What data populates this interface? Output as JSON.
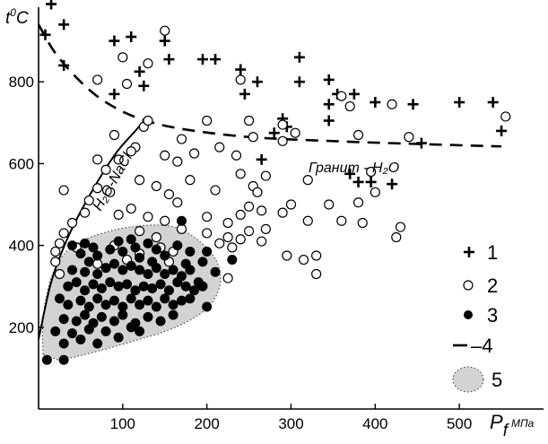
{
  "chart_data": {
    "type": "scatter",
    "ylabel": {
      "main": "t",
      "sup": "0",
      "unit": "C"
    },
    "xlabel": {
      "main": "P",
      "sub": "f",
      "unit": "МПа"
    },
    "xlim": [
      0,
      600
    ],
    "ylim": [
      0,
      1000
    ],
    "xticks": [
      "100",
      "200",
      "300",
      "400",
      "500"
    ],
    "xtick_values": [
      100,
      200,
      300,
      400,
      500
    ],
    "yticks": [
      "200",
      "400",
      "600",
      "800"
    ],
    "ytick_values": [
      200,
      400,
      600,
      800
    ],
    "grid": false,
    "legend_position": "right",
    "series": [
      {
        "label": "1",
        "marker": "plus",
        "points": [
          [
            10,
            1020
          ],
          [
            15,
            990
          ],
          [
            8,
            915
          ],
          [
            30,
            940
          ],
          [
            30,
            840
          ],
          [
            90,
            900
          ],
          [
            110,
            910
          ],
          [
            90,
            770
          ],
          [
            120,
            825
          ],
          [
            125,
            790
          ],
          [
            150,
            900
          ],
          [
            155,
            855
          ],
          [
            195,
            855
          ],
          [
            210,
            855
          ],
          [
            240,
            830
          ],
          [
            245,
            770
          ],
          [
            260,
            800
          ],
          [
            280,
            675
          ],
          [
            265,
            610
          ],
          [
            290,
            710
          ],
          [
            295,
            690
          ],
          [
            310,
            860
          ],
          [
            310,
            800
          ],
          [
            345,
            805
          ],
          [
            355,
            770
          ],
          [
            345,
            745
          ],
          [
            345,
            705
          ],
          [
            375,
            770
          ],
          [
            400,
            750
          ],
          [
            370,
            575
          ],
          [
            380,
            555
          ],
          [
            395,
            555
          ],
          [
            420,
            550
          ],
          [
            445,
            745
          ],
          [
            455,
            650
          ],
          [
            500,
            750
          ],
          [
            540,
            750
          ],
          [
            550,
            680
          ]
        ]
      },
      {
        "label": "2",
        "marker": "open-circle",
        "points": [
          [
            150,
            925
          ],
          [
            100,
            860
          ],
          [
            130,
            845
          ],
          [
            70,
            805
          ],
          [
            105,
            795
          ],
          [
            90,
            670
          ],
          [
            125,
            690
          ],
          [
            130,
            705
          ],
          [
            115,
            640
          ],
          [
            170,
            660
          ],
          [
            200,
            705
          ],
          [
            240,
            805
          ],
          [
            250,
            705
          ],
          [
            255,
            665
          ],
          [
            290,
            695
          ],
          [
            305,
            675
          ],
          [
            290,
            655
          ],
          [
            360,
            765
          ],
          [
            370,
            740
          ],
          [
            380,
            670
          ],
          [
            420,
            745
          ],
          [
            440,
            665
          ],
          [
            555,
            715
          ],
          [
            70,
            610
          ],
          [
            80,
            585
          ],
          [
            95,
            610
          ],
          [
            110,
            630
          ],
          [
            150,
            620
          ],
          [
            165,
            605
          ],
          [
            185,
            625
          ],
          [
            215,
            640
          ],
          [
            235,
            620
          ],
          [
            70,
            540
          ],
          [
            85,
            530
          ],
          [
            60,
            510
          ],
          [
            30,
            535
          ],
          [
            120,
            560
          ],
          [
            140,
            545
          ],
          [
            155,
            525
          ],
          [
            165,
            505
          ],
          [
            180,
            560
          ],
          [
            210,
            535
          ],
          [
            240,
            575
          ],
          [
            255,
            545
          ],
          [
            260,
            530
          ],
          [
            270,
            570
          ],
          [
            250,
            495
          ],
          [
            265,
            485
          ],
          [
            290,
            480
          ],
          [
            300,
            500
          ],
          [
            320,
            560
          ],
          [
            345,
            500
          ],
          [
            360,
            460
          ],
          [
            380,
            505
          ],
          [
            385,
            455
          ],
          [
            395,
            580
          ],
          [
            400,
            530
          ],
          [
            425,
            420
          ],
          [
            430,
            445
          ],
          [
            320,
            460
          ],
          [
            240,
            475
          ],
          [
            225,
            455
          ],
          [
            250,
            435
          ],
          [
            265,
            410
          ],
          [
            270,
            440
          ],
          [
            240,
            415
          ],
          [
            295,
            375
          ],
          [
            315,
            365
          ],
          [
            330,
            375
          ],
          [
            330,
            330
          ],
          [
            55,
            480
          ],
          [
            95,
            475
          ],
          [
            110,
            490
          ],
          [
            130,
            470
          ],
          [
            150,
            460
          ],
          [
            120,
            435
          ],
          [
            140,
            420
          ],
          [
            170,
            440
          ],
          [
            200,
            470
          ],
          [
            200,
            430
          ],
          [
            215,
            405
          ],
          [
            225,
            420
          ],
          [
            230,
            395
          ],
          [
            120,
            380
          ],
          [
            145,
            395
          ],
          [
            160,
            385
          ],
          [
            155,
            360
          ],
          [
            105,
            365
          ],
          [
            90,
            400
          ],
          [
            70,
            355
          ],
          [
            45,
            395
          ],
          [
            20,
            385
          ],
          [
            25,
            405
          ],
          [
            20,
            360
          ],
          [
            25,
            330
          ],
          [
            30,
            430
          ],
          [
            40,
            455
          ],
          [
            225,
            320
          ]
        ]
      },
      {
        "label": "3",
        "marker": "filled-circle",
        "points": [
          [
            40,
            400
          ],
          [
            55,
            405
          ],
          [
            65,
            395
          ],
          [
            50,
            380
          ],
          [
            70,
            375
          ],
          [
            60,
            360
          ],
          [
            85,
            390
          ],
          [
            95,
            410
          ],
          [
            100,
            385
          ],
          [
            110,
            415
          ],
          [
            115,
            395
          ],
          [
            120,
            370
          ],
          [
            130,
            405
          ],
          [
            140,
            390
          ],
          [
            135,
            360
          ],
          [
            150,
            375
          ],
          [
            165,
            400
          ],
          [
            170,
            460
          ],
          [
            180,
            385
          ],
          [
            175,
            355
          ],
          [
            200,
            385
          ],
          [
            195,
            360
          ],
          [
            210,
            335
          ],
          [
            40,
            340
          ],
          [
            55,
            335
          ],
          [
            70,
            330
          ],
          [
            80,
            345
          ],
          [
            90,
            355
          ],
          [
            100,
            340
          ],
          [
            110,
            350
          ],
          [
            120,
            340
          ],
          [
            130,
            330
          ],
          [
            140,
            345
          ],
          [
            150,
            330
          ],
          [
            160,
            340
          ],
          [
            170,
            325
          ],
          [
            180,
            340
          ],
          [
            190,
            310
          ],
          [
            35,
            300
          ],
          [
            45,
            310
          ],
          [
            55,
            290
          ],
          [
            65,
            305
          ],
          [
            75,
            295
          ],
          [
            85,
            310
          ],
          [
            95,
            300
          ],
          [
            105,
            305
          ],
          [
            115,
            290
          ],
          [
            125,
            300
          ],
          [
            135,
            295
          ],
          [
            145,
            305
          ],
          [
            155,
            290
          ],
          [
            165,
            310
          ],
          [
            175,
            300
          ],
          [
            185,
            290
          ],
          [
            195,
            300
          ],
          [
            25,
            270
          ],
          [
            35,
            255
          ],
          [
            50,
            265
          ],
          [
            60,
            250
          ],
          [
            70,
            270
          ],
          [
            80,
            255
          ],
          [
            90,
            265
          ],
          [
            100,
            250
          ],
          [
            110,
            270
          ],
          [
            120,
            255
          ],
          [
            130,
            265
          ],
          [
            140,
            250
          ],
          [
            150,
            270
          ],
          [
            160,
            255
          ],
          [
            170,
            265
          ],
          [
            180,
            270
          ],
          [
            30,
            220
          ],
          [
            45,
            215
          ],
          [
            55,
            230
          ],
          [
            65,
            210
          ],
          [
            75,
            225
          ],
          [
            90,
            215
          ],
          [
            100,
            230
          ],
          [
            115,
            210
          ],
          [
            130,
            225
          ],
          [
            145,
            215
          ],
          [
            160,
            230
          ],
          [
            20,
            190
          ],
          [
            40,
            185
          ],
          [
            60,
            195
          ],
          [
            80,
            190
          ],
          [
            30,
            160
          ],
          [
            50,
            170
          ],
          [
            70,
            160
          ],
          [
            95,
            175
          ],
          [
            110,
            200
          ],
          [
            120,
            190
          ],
          [
            10,
            120
          ],
          [
            30,
            120
          ],
          [
            230,
            365
          ],
          [
            200,
            250
          ]
        ]
      }
    ],
    "curves": [
      {
        "label": "H₂O-NaCl",
        "style": "solid",
        "points": [
          [
            0,
            170
          ],
          [
            15,
            310
          ],
          [
            35,
            420
          ],
          [
            60,
            520
          ],
          [
            90,
            620
          ],
          [
            115,
            680
          ],
          [
            130,
            715
          ]
        ]
      },
      {
        "label": "Гранит - H₂O",
        "style": "dashed",
        "points": [
          [
            0,
            940
          ],
          [
            20,
            870
          ],
          [
            50,
            800
          ],
          [
            80,
            750
          ],
          [
            120,
            710
          ],
          [
            170,
            685
          ],
          [
            250,
            665
          ],
          [
            350,
            655
          ],
          [
            450,
            648
          ],
          [
            550,
            642
          ]
        ]
      }
    ],
    "field": {
      "label": "5",
      "style": "dotted-outline gray fill"
    },
    "legend": [
      {
        "symbol": "plus",
        "label": "1"
      },
      {
        "symbol": "open-circle",
        "label": "2"
      },
      {
        "symbol": "filled-circle",
        "label": "3"
      },
      {
        "symbol": "dash",
        "label": "–4"
      },
      {
        "symbol": "field",
        "label": "5"
      }
    ]
  }
}
